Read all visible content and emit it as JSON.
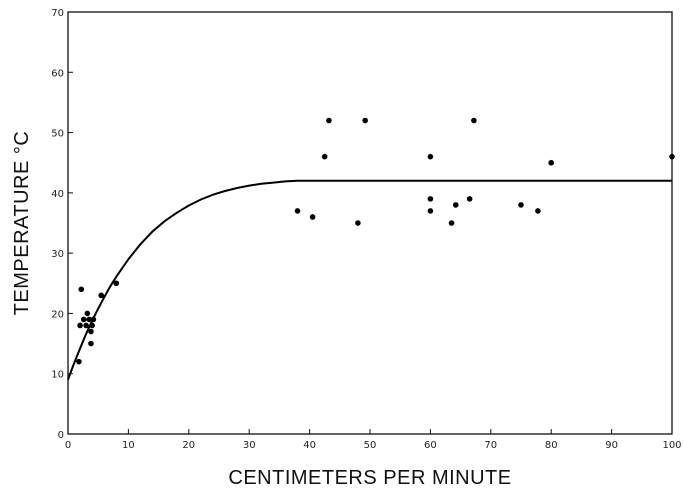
{
  "chart_data": {
    "type": "scatter",
    "title": "",
    "xlabel": "CENTIMETERS PER MINUTE",
    "ylabel": "TEMPERATURE °C",
    "xlim": [
      0,
      100
    ],
    "ylim": [
      0,
      70
    ],
    "xticks": [
      0,
      10,
      20,
      30,
      40,
      50,
      60,
      70,
      80,
      90,
      100
    ],
    "yticks": [
      0,
      10,
      20,
      30,
      40,
      50,
      60,
      70
    ],
    "grid": false,
    "points": [
      {
        "x": 1.8,
        "y": 12
      },
      {
        "x": 2.0,
        "y": 18
      },
      {
        "x": 2.2,
        "y": 24
      },
      {
        "x": 2.6,
        "y": 19
      },
      {
        "x": 3.0,
        "y": 18
      },
      {
        "x": 3.2,
        "y": 20
      },
      {
        "x": 3.5,
        "y": 19
      },
      {
        "x": 3.8,
        "y": 17
      },
      {
        "x": 3.8,
        "y": 15
      },
      {
        "x": 4.0,
        "y": 18
      },
      {
        "x": 4.2,
        "y": 19
      },
      {
        "x": 5.5,
        "y": 23
      },
      {
        "x": 8.0,
        "y": 25
      },
      {
        "x": 38,
        "y": 37
      },
      {
        "x": 40.5,
        "y": 36
      },
      {
        "x": 42.5,
        "y": 46
      },
      {
        "x": 43.2,
        "y": 52
      },
      {
        "x": 48,
        "y": 35
      },
      {
        "x": 49.2,
        "y": 52
      },
      {
        "x": 60,
        "y": 46
      },
      {
        "x": 60,
        "y": 39
      },
      {
        "x": 60,
        "y": 37
      },
      {
        "x": 63.5,
        "y": 35
      },
      {
        "x": 64.2,
        "y": 38
      },
      {
        "x": 66.5,
        "y": 39
      },
      {
        "x": 67.2,
        "y": 52
      },
      {
        "x": 75,
        "y": 38
      },
      {
        "x": 77.8,
        "y": 37
      },
      {
        "x": 80,
        "y": 45
      },
      {
        "x": 100,
        "y": 46
      }
    ],
    "fit_curve": {
      "x": [
        0,
        1,
        2,
        3,
        4,
        5,
        6,
        7,
        8,
        10,
        12,
        14,
        16,
        18,
        20,
        22,
        24,
        26,
        28,
        30,
        32,
        34,
        36,
        38,
        100
      ],
      "y": [
        9,
        11.7,
        14.2,
        16.6,
        18.8,
        20.8,
        22.7,
        24.5,
        26.1,
        29.0,
        31.5,
        33.6,
        35.3,
        36.7,
        37.9,
        38.9,
        39.7,
        40.3,
        40.8,
        41.2,
        41.5,
        41.7,
        41.9,
        42,
        42
      ]
    }
  }
}
